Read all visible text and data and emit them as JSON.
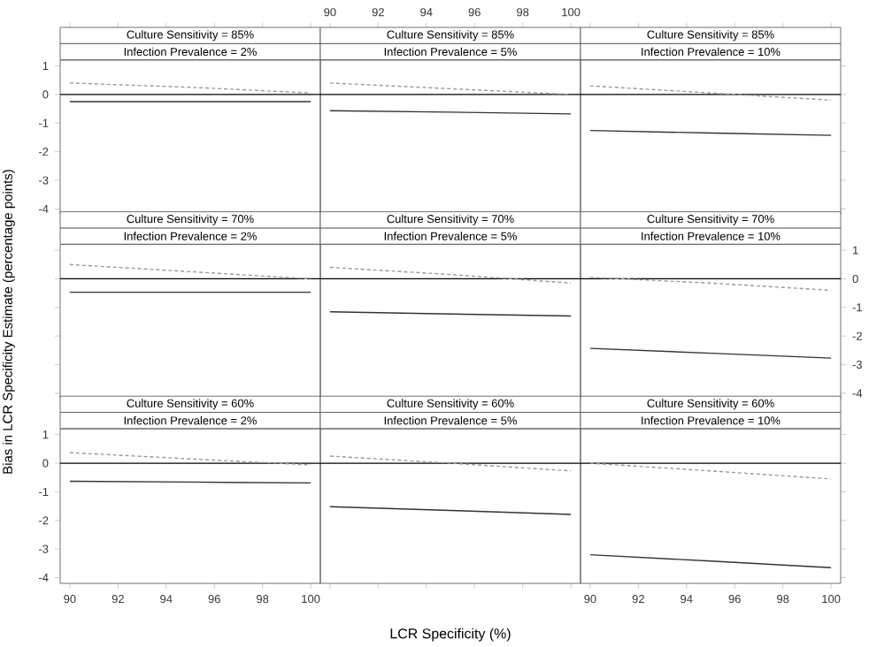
{
  "chart_data": [
    {
      "type": "line",
      "title": "Culture Sensitivity = 85%",
      "subtitle": "Infection Prevalence = 2%",
      "x": [
        90,
        95,
        100
      ],
      "xlim": [
        89.6,
        100.4
      ],
      "ylim": [
        -4.2,
        1.2
      ],
      "xticks": [
        90,
        92,
        94,
        96,
        98,
        100
      ],
      "yticks": [
        -4,
        -3,
        -2,
        -1,
        0,
        1
      ],
      "tick_labels": "y",
      "ref_lines": [
        {
          "axis": "y",
          "value": 0,
          "color": "#000000"
        }
      ],
      "series": [
        {
          "color": "#333333",
          "line_style": "solid",
          "values": [
            -0.25,
            -0.25,
            -0.25
          ]
        },
        {
          "color": "#999999",
          "line_style": "dashed",
          "values": [
            0.4,
            0.25,
            0.05
          ]
        }
      ]
    },
    {
      "type": "line",
      "title": "Culture Sensitivity = 85%",
      "subtitle": "Infection Prevalence = 5%",
      "x": [
        90,
        95,
        100
      ],
      "xlim": [
        89.6,
        100.4
      ],
      "ylim": [
        -4.2,
        1.2
      ],
      "xticks": [
        90,
        92,
        94,
        96,
        98,
        100
      ],
      "yticks": [
        -4,
        -3,
        -2,
        -1,
        0,
        1
      ],
      "tick_labels": "x",
      "ref_lines": [
        {
          "axis": "y",
          "value": 0,
          "color": "#000000"
        }
      ],
      "series": [
        {
          "color": "#333333",
          "line_style": "solid",
          "values": [
            -0.57,
            -0.62,
            -0.68
          ]
        },
        {
          "color": "#999999",
          "line_style": "dashed",
          "values": [
            0.4,
            0.2,
            0.0
          ]
        }
      ]
    },
    {
      "type": "line",
      "title": "Culture Sensitivity = 85%",
      "subtitle": "Infection Prevalence = 10%",
      "x": [
        90,
        95,
        100
      ],
      "xlim": [
        89.6,
        100.4
      ],
      "ylim": [
        -4.2,
        1.2
      ],
      "xticks": [
        90,
        92,
        94,
        96,
        98,
        100
      ],
      "yticks": [
        -4,
        -3,
        -2,
        -1,
        0,
        1
      ],
      "tick_labels": false,
      "ref_lines": [
        {
          "axis": "y",
          "value": 0,
          "color": "#000000"
        }
      ],
      "series": [
        {
          "color": "#333333",
          "line_style": "solid",
          "values": [
            -1.26,
            -1.35,
            -1.43
          ]
        },
        {
          "color": "#999999",
          "line_style": "dashed",
          "values": [
            0.3,
            0.05,
            -0.2
          ]
        }
      ]
    },
    {
      "type": "line",
      "title": "Culture Sensitivity = 70%",
      "subtitle": "Infection Prevalence = 2%",
      "ylabel": "Bias in LCR Specificity Estimate (percentage points)",
      "x": [
        90,
        95,
        100
      ],
      "xlim": [
        89.6,
        100.4
      ],
      "ylim": [
        -4.2,
        1.2
      ],
      "xticks": [
        90,
        92,
        94,
        96,
        98,
        100
      ],
      "yticks": [
        -4,
        -3,
        -2,
        -1,
        0,
        1
      ],
      "tick_labels": false,
      "ref_lines": [
        {
          "axis": "y",
          "value": 0,
          "color": "#000000"
        }
      ],
      "series": [
        {
          "color": "#333333",
          "line_style": "solid",
          "values": [
            -0.47,
            -0.47,
            -0.47
          ]
        },
        {
          "color": "#999999",
          "line_style": "dashed",
          "values": [
            0.5,
            0.25,
            0.0
          ]
        }
      ]
    },
    {
      "type": "line",
      "title": "Culture Sensitivity = 70%",
      "subtitle": "Infection Prevalence = 5%",
      "x": [
        90,
        95,
        100
      ],
      "xlim": [
        89.6,
        100.4
      ],
      "ylim": [
        -4.2,
        1.2
      ],
      "xticks": [
        90,
        92,
        94,
        96,
        98,
        100
      ],
      "yticks": [
        -4,
        -3,
        -2,
        -1,
        0,
        1
      ],
      "tick_labels": false,
      "ref_lines": [
        {
          "axis": "y",
          "value": 0,
          "color": "#000000"
        }
      ],
      "series": [
        {
          "color": "#333333",
          "line_style": "solid",
          "values": [
            -1.15,
            -1.23,
            -1.3
          ]
        },
        {
          "color": "#999999",
          "line_style": "dashed",
          "values": [
            0.4,
            0.15,
            -0.15
          ]
        }
      ]
    },
    {
      "type": "line",
      "title": "Culture Sensitivity = 70%",
      "subtitle": "Infection Prevalence = 10%",
      "x": [
        90,
        95,
        100
      ],
      "xlim": [
        89.6,
        100.4
      ],
      "ylim": [
        -4.2,
        1.2
      ],
      "xticks": [
        90,
        92,
        94,
        96,
        98,
        100
      ],
      "yticks": [
        -4,
        -3,
        -2,
        -1,
        0,
        1
      ],
      "tick_labels": "y",
      "ref_lines": [
        {
          "axis": "y",
          "value": 0,
          "color": "#000000"
        }
      ],
      "series": [
        {
          "color": "#333333",
          "line_style": "solid",
          "values": [
            -2.43,
            -2.6,
            -2.77
          ]
        },
        {
          "color": "#999999",
          "line_style": "dashed",
          "values": [
            0.05,
            -0.15,
            -0.4
          ]
        }
      ]
    },
    {
      "type": "line",
      "title": "Culture Sensitivity = 60%",
      "subtitle": "Infection Prevalence = 2%",
      "x": [
        90,
        95,
        100
      ],
      "xlim": [
        89.6,
        100.4
      ],
      "ylim": [
        -4.2,
        1.2
      ],
      "xticks": [
        90,
        92,
        94,
        96,
        98,
        100
      ],
      "yticks": [
        -4,
        -3,
        -2,
        -1,
        0,
        1
      ],
      "ref_lines": [
        {
          "axis": "y",
          "value": 0,
          "color": "#000000"
        }
      ],
      "series": [
        {
          "color": "#333333",
          "line_style": "solid",
          "values": [
            -0.63,
            -0.66,
            -0.69
          ]
        },
        {
          "color": "#999999",
          "line_style": "dashed",
          "values": [
            0.37,
            0.15,
            -0.06
          ]
        }
      ]
    },
    {
      "type": "line",
      "title": "Culture Sensitivity = 60%",
      "subtitle": "Infection Prevalence = 5%",
      "xlabel": "LCR Specificity (%)",
      "x": [
        90,
        95,
        100
      ],
      "xlim": [
        89.6,
        100.4
      ],
      "ylim": [
        -4.2,
        1.2
      ],
      "xticks": [
        90,
        92,
        94,
        96,
        98,
        100
      ],
      "yticks": [
        -4,
        -3,
        -2,
        -1,
        0,
        1
      ],
      "tick_labels": false,
      "ref_lines": [
        {
          "axis": "y",
          "value": 0,
          "color": "#000000"
        }
      ],
      "series": [
        {
          "color": "#333333",
          "line_style": "solid",
          "values": [
            -1.52,
            -1.65,
            -1.79
          ]
        },
        {
          "color": "#999999",
          "line_style": "dashed",
          "values": [
            0.25,
            0.0,
            -0.27
          ]
        }
      ]
    },
    {
      "type": "line",
      "title": "Culture Sensitivity = 60%",
      "subtitle": "Infection Prevalence = 10%",
      "x": [
        90,
        95,
        100
      ],
      "xlim": [
        89.6,
        100.4
      ],
      "ylim": [
        -4.2,
        1.2
      ],
      "xticks": [
        90,
        92,
        94,
        96,
        98,
        100
      ],
      "yticks": [
        -4,
        -3,
        -2,
        -1,
        0,
        1
      ],
      "tick_labels": "x",
      "ref_lines": [
        {
          "axis": "y",
          "value": 0,
          "color": "#000000"
        }
      ],
      "series": [
        {
          "color": "#333333",
          "line_style": "solid",
          "values": [
            -3.2,
            -3.42,
            -3.65
          ]
        },
        {
          "color": "#999999",
          "line_style": "dashed",
          "values": [
            0.0,
            -0.27,
            -0.55
          ]
        }
      ]
    }
  ]
}
